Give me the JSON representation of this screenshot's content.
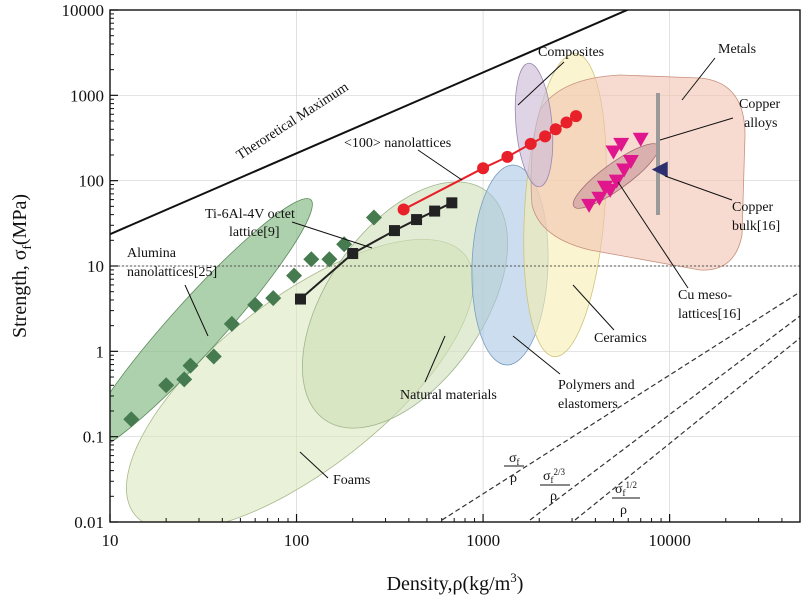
{
  "chart_data": {
    "type": "scatter",
    "xlabel": "Density,ρ(kg/m³)",
    "ylabel": "Strength, σ_f(MPa)",
    "xscale": "log",
    "yscale": "log",
    "xlim": [
      10,
      50000
    ],
    "ylim": [
      0.01,
      10000
    ],
    "grid": true,
    "xticks": [
      "10",
      "100",
      "1000",
      "10000"
    ],
    "yticks": [
      "0.01",
      "0.1",
      "1",
      "10",
      "100",
      "1000",
      "10000"
    ],
    "theoretical_maximum": {
      "label": "Theroretical Maximum",
      "x": [
        10,
        8000
      ],
      "y": [
        23.6,
        13300
      ]
    },
    "reference_line": {
      "y": 10,
      "style": "dashed"
    },
    "series": [
      {
        "name": "<100> nanolattices",
        "marker": "circle",
        "color": "#e8202a",
        "x": [
          375,
          1000,
          1350,
          1800,
          2150,
          2450,
          2800,
          3150
        ],
        "y": [
          46,
          140,
          190,
          270,
          330,
          400,
          480,
          570
        ]
      },
      {
        "name": "Ti-6Al-4V octet lattice[9]",
        "marker": "square",
        "color": "#222222",
        "x": [
          105,
          200,
          335,
          440,
          550,
          680
        ],
        "y": [
          4.1,
          14,
          26,
          35,
          44,
          55
        ]
      },
      {
        "name": "Alumina nanolattices[25]",
        "marker": "diamond",
        "color": "#467a4f",
        "x": [
          13,
          20,
          25,
          27,
          36,
          45,
          60,
          75,
          97,
          120,
          150,
          180,
          260
        ],
        "y": [
          0.16,
          0.4,
          0.47,
          0.68,
          0.87,
          2.1,
          3.5,
          4.2,
          7.7,
          12,
          12,
          18,
          37
        ]
      },
      {
        "name": "Cu meso-lattices[16]",
        "marker": "triangle-down",
        "color": "#e0178c",
        "x": [
          3700,
          4200,
          4800,
          5200,
          5700,
          6200,
          7000,
          5000,
          4500,
          5500
        ],
        "y": [
          52,
          63,
          78,
          100,
          135,
          170,
          310,
          220,
          85,
          270
        ]
      },
      {
        "name": "Copper bulk[16]",
        "marker": "triangle-left",
        "color": "#2d2f6e",
        "x": [
          8960
        ],
        "y": [
          135
        ]
      }
    ],
    "regions": [
      {
        "label": "Foams",
        "color": "#d7e5b8"
      },
      {
        "label": "Natural materials",
        "color": "#cfe0b8"
      },
      {
        "label": "Alumina nanolattices[25]",
        "color": "#8bbd8a"
      },
      {
        "label": "Polymers and elastomers",
        "color": "#a9c7e3"
      },
      {
        "label": "Ceramics",
        "color": "#f7efb0"
      },
      {
        "label": "Composites",
        "color": "#cdbdd9"
      },
      {
        "label": "Metals",
        "color": "#f1c3b0"
      },
      {
        "label": "Copper alloys",
        "color": "#d0a1a3"
      }
    ],
    "guide_lines": [
      {
        "label_num": "σ_f",
        "label_den": "ρ"
      },
      {
        "label_num": "σ_f^{2/3}",
        "label_den": "ρ"
      },
      {
        "label_num": "σ_f^{1/2}",
        "label_den": "ρ"
      }
    ]
  },
  "annotations": {
    "theoretical_max": "Theroretical Maximum",
    "nano100": "<100> nanolattices",
    "ti_line1": "Ti-6Al-4V octet",
    "ti_line2": "lattice[9]",
    "alumina_line1": "Alumina",
    "alumina_line2": "nanolattices[25]",
    "composites": "Composites",
    "metals": "Metals",
    "copper_alloys_line1": "Copper",
    "copper_alloys_line2": "alloys",
    "copper_bulk_line1": "Copper",
    "copper_bulk_line2": "bulk[16]",
    "cu_meso_line1": "Cu meso-",
    "cu_meso_line2": "lattices[16]",
    "ceramics": "Ceramics",
    "polymers_line1": "Polymers and",
    "polymers_line2": "elastomers",
    "natural": "Natural materials",
    "foams": "Foams"
  }
}
